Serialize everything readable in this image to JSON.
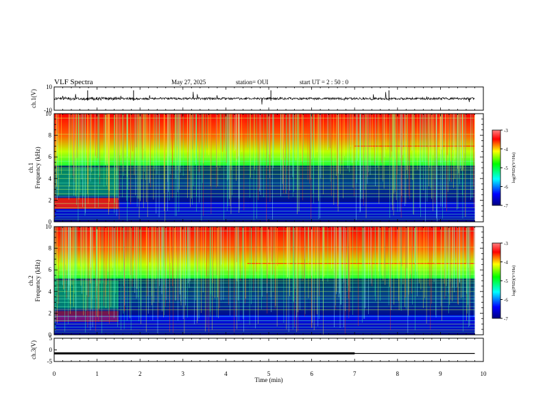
{
  "header": {
    "title": "VLF Spectra",
    "date": "May 27, 2025",
    "station": "station= OUI",
    "start": "start  UT =   2 : 50 : 0"
  },
  "chart_data": [
    {
      "type": "line",
      "panel": "ch1-waveform",
      "ylabel": "ch.1(V)",
      "ylim": [
        -10,
        10
      ],
      "ytick_labels": [
        "10",
        "-10"
      ]
    },
    {
      "type": "heatmap",
      "panel": "ch1-spectrogram",
      "ylabel_line1": "ch.1",
      "ylabel_line2": "Frequency (kHz)",
      "ylim": [
        0,
        10
      ],
      "ytick_labels": [
        "0",
        "2",
        "4",
        "6",
        "8",
        "10"
      ],
      "colorbar": {
        "label": "log(PSD)(V²/Hz)",
        "range": [
          -7,
          -3
        ],
        "tick_labels": [
          "-3",
          "-4",
          "-5",
          "-6",
          "-7"
        ]
      }
    },
    {
      "type": "heatmap",
      "panel": "ch2-spectrogram",
      "ylabel_line1": "ch.2",
      "ylabel_line2": "Frequency (kHz)",
      "ylim": [
        0,
        10
      ],
      "ytick_labels": [
        "0",
        "2",
        "4",
        "6",
        "8",
        "10"
      ],
      "colorbar": {
        "label": "log(PSD)(V²/Hz)",
        "range": [
          -7,
          -3
        ],
        "tick_labels": [
          "-3",
          "-4",
          "-5",
          "-6",
          "-7"
        ]
      }
    },
    {
      "type": "line",
      "panel": "ch3",
      "ylabel": "ch.3(V)",
      "ylim": [
        -5,
        5
      ],
      "ytick_labels": [
        "5",
        "0",
        "-5"
      ],
      "x": [
        0,
        7,
        7,
        9.8
      ],
      "y": [
        -1.5,
        -1.5,
        -1.6,
        -1.6
      ]
    }
  ],
  "xaxis": {
    "label": "Time (min)",
    "range": [
      0,
      10
    ],
    "tick_labels": [
      "0",
      "1",
      "2",
      "3",
      "4",
      "5",
      "6",
      "7",
      "8",
      "9",
      "10"
    ],
    "data_end": 9.8
  },
  "colors": {
    "jet": [
      "#000080",
      "#0000ff",
      "#00ffff",
      "#00ff00",
      "#ffff00",
      "#ff0000",
      "#800000"
    ]
  }
}
